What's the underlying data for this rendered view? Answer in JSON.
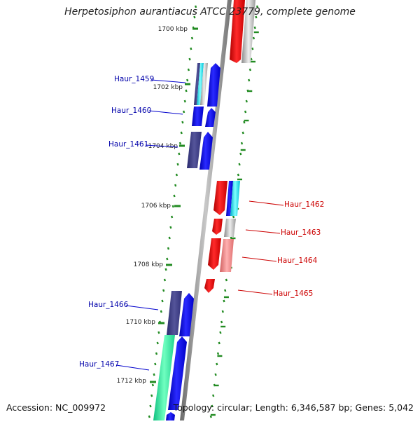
{
  "title": "Herpetosiphon aurantiacus ATCC 23779, complete genome",
  "footer": {
    "accession": "Accession: NC_009972",
    "topology": "Topology: circular; Length: 6,346,587 bp; Genes: 5,042"
  },
  "colors": {
    "forward_gene": "#0000ee",
    "reverse_gene": "#ee0000",
    "forward_label": "#0000aa",
    "reverse_label": "#cc0000",
    "tick": "#228b22",
    "backbone": "#8c8c8c"
  },
  "ticks": [
    {
      "label": "1700 kbp"
    },
    {
      "label": "1702 kbp"
    },
    {
      "label": "1704 kbp"
    },
    {
      "label": "1706 kbp"
    },
    {
      "label": "1708 kbp"
    },
    {
      "label": "1710 kbp"
    },
    {
      "label": "1712 kbp"
    }
  ],
  "gene_labels_left": [
    "Haur_1459",
    "Haur_1460",
    "Haur_1461",
    "Haur_1466",
    "Haur_1467"
  ],
  "gene_labels_right": [
    "Haur_1462",
    "Haur_1463",
    "Haur_1464",
    "Haur_1465"
  ]
}
